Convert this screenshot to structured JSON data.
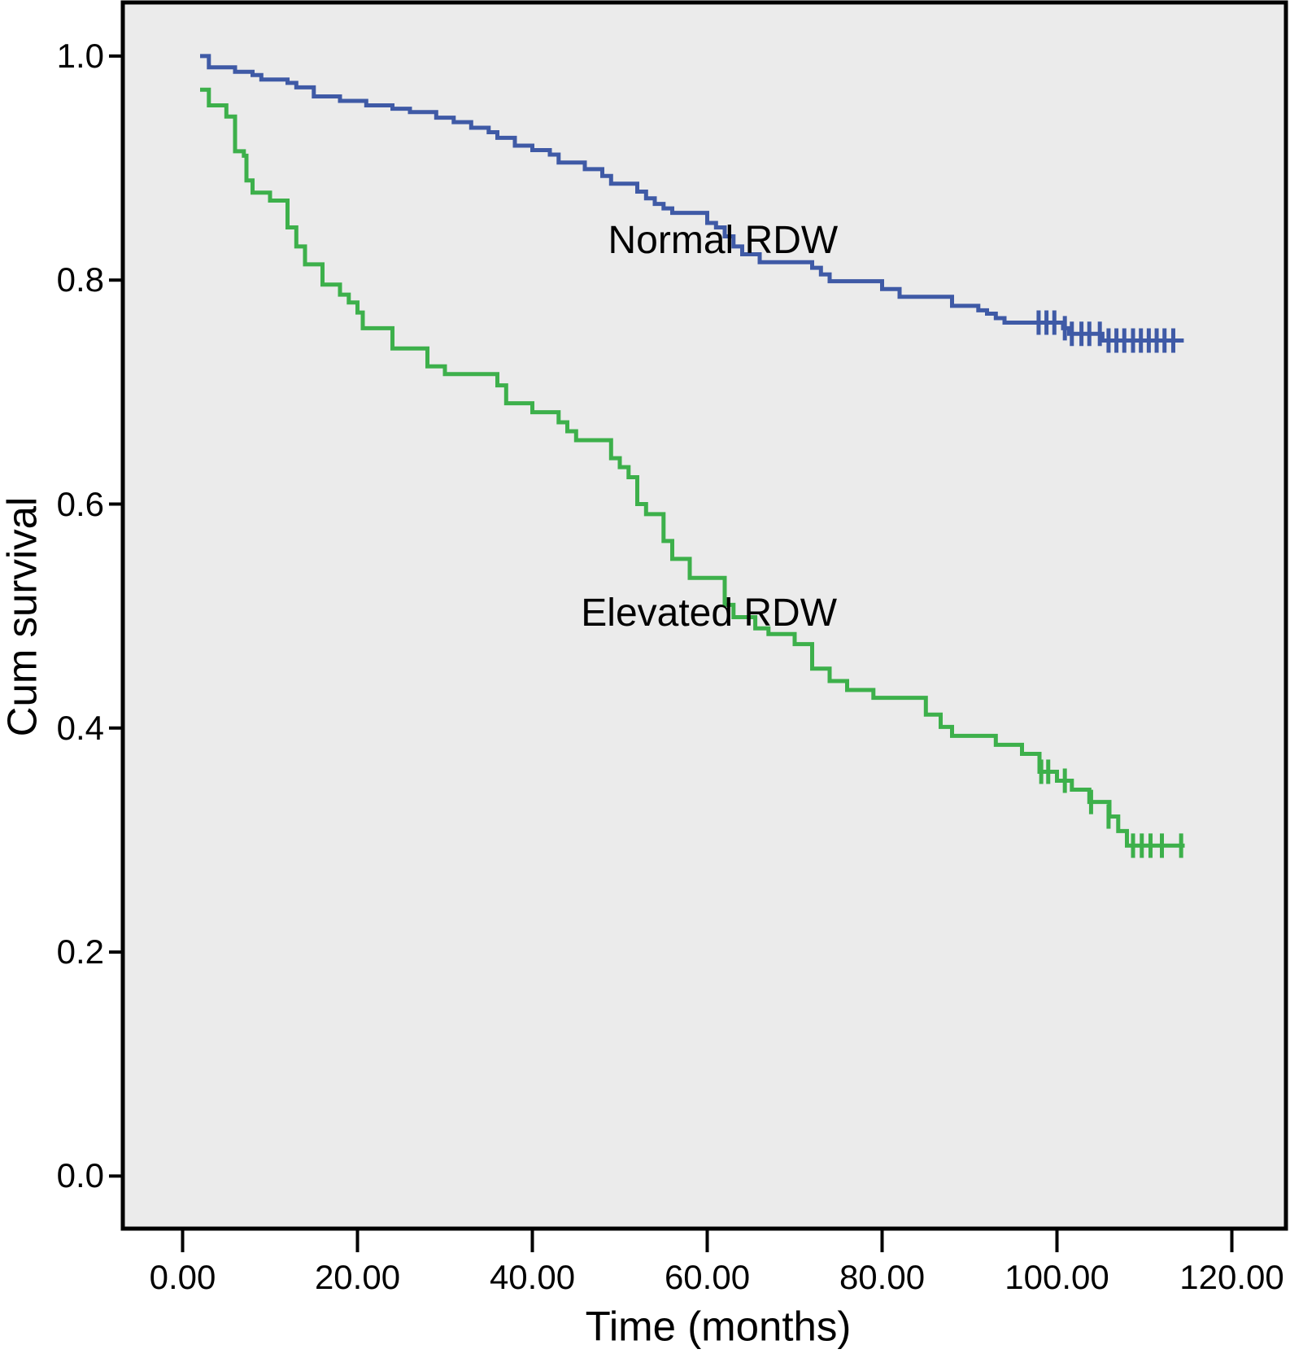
{
  "chart_data": {
    "type": "line",
    "subtype": "kaplan-meier-step",
    "title": "",
    "xlabel": "Time (months)",
    "ylabel": "Cum survival",
    "grid": false,
    "legend_position": "none",
    "plot_background": "#ebebeb",
    "frame_color": "#000000",
    "xlim": [
      -6.8,
      126.3
    ],
    "ylim": [
      -0.047,
      1.048
    ],
    "x_ticks": [
      {
        "value": 0,
        "label": "0.00"
      },
      {
        "value": 20,
        "label": "20.00"
      },
      {
        "value": 40,
        "label": "40.00"
      },
      {
        "value": 60,
        "label": "60.00"
      },
      {
        "value": 80,
        "label": "80.00"
      },
      {
        "value": 100,
        "label": "100.00"
      },
      {
        "value": 120,
        "label": "120.00"
      }
    ],
    "y_ticks": [
      {
        "value": 1.0,
        "label": "1.0"
      },
      {
        "value": 0.8,
        "label": "0.8"
      },
      {
        "value": 0.6,
        "label": "0.6"
      },
      {
        "value": 0.4,
        "label": "0.4"
      },
      {
        "value": 0.2,
        "label": "0.2"
      },
      {
        "value": 0.0,
        "label": "0.0"
      }
    ],
    "series": [
      {
        "name": "Normal RDW",
        "color": "#3f5aa6",
        "start": [
          2,
          1.0
        ],
        "drops": [
          [
            3,
            0.99
          ],
          [
            6,
            0.986
          ],
          [
            8,
            0.983
          ],
          [
            9,
            0.979
          ],
          [
            12,
            0.976
          ],
          [
            13,
            0.972
          ],
          [
            15,
            0.964
          ],
          [
            18,
            0.96
          ],
          [
            21,
            0.956
          ],
          [
            24,
            0.953
          ],
          [
            26,
            0.95
          ],
          [
            29,
            0.945
          ],
          [
            31,
            0.941
          ],
          [
            33,
            0.936
          ],
          [
            35,
            0.932
          ],
          [
            36,
            0.927
          ],
          [
            38,
            0.92
          ],
          [
            40,
            0.916
          ],
          [
            42,
            0.912
          ],
          [
            43,
            0.905
          ],
          [
            46,
            0.899
          ],
          [
            48,
            0.893
          ],
          [
            49,
            0.886
          ],
          [
            52,
            0.879
          ],
          [
            53,
            0.873
          ],
          [
            54,
            0.868
          ],
          [
            55,
            0.864
          ],
          [
            56,
            0.86
          ],
          [
            60,
            0.851
          ],
          [
            61,
            0.847
          ],
          [
            62,
            0.839
          ],
          [
            63,
            0.83
          ],
          [
            64,
            0.823
          ],
          [
            66,
            0.816
          ],
          [
            72,
            0.811
          ],
          [
            73,
            0.805
          ],
          [
            74,
            0.799
          ],
          [
            80,
            0.792
          ],
          [
            82,
            0.785
          ],
          [
            88,
            0.777
          ],
          [
            91,
            0.773
          ],
          [
            92,
            0.77
          ],
          [
            93,
            0.766
          ],
          [
            94,
            0.762
          ],
          [
            100.7,
            0.757
          ],
          [
            101.4,
            0.752
          ],
          [
            105.2,
            0.746
          ]
        ],
        "end_time": 114.5,
        "censored": [
          [
            97.9,
            0.762
          ],
          [
            98.8,
            0.762
          ],
          [
            99.7,
            0.762
          ],
          [
            100.9,
            0.757
          ],
          [
            101.7,
            0.752
          ],
          [
            102.8,
            0.752
          ],
          [
            103.7,
            0.752
          ],
          [
            104.9,
            0.752
          ],
          [
            105.9,
            0.746
          ],
          [
            106.8,
            0.746
          ],
          [
            107.7,
            0.746
          ],
          [
            108.7,
            0.746
          ],
          [
            109.6,
            0.746
          ],
          [
            110.5,
            0.746
          ],
          [
            111.4,
            0.746
          ],
          [
            112.3,
            0.746
          ],
          [
            113.3,
            0.746
          ]
        ]
      },
      {
        "name": "Elevated RDW",
        "color": "#3db04b",
        "start": [
          2,
          0.97
        ],
        "drops": [
          [
            3,
            0.956
          ],
          [
            5,
            0.946
          ],
          [
            6,
            0.915
          ],
          [
            7,
            0.911
          ],
          [
            7.3,
            0.889
          ],
          [
            8,
            0.878
          ],
          [
            10,
            0.871
          ],
          [
            12,
            0.847
          ],
          [
            13,
            0.83
          ],
          [
            14,
            0.814
          ],
          [
            16,
            0.796
          ],
          [
            18,
            0.787
          ],
          [
            19,
            0.78
          ],
          [
            20,
            0.771
          ],
          [
            20.6,
            0.757
          ],
          [
            24,
            0.739
          ],
          [
            28,
            0.723
          ],
          [
            30,
            0.716
          ],
          [
            36,
            0.706
          ],
          [
            37,
            0.69
          ],
          [
            40,
            0.682
          ],
          [
            43,
            0.673
          ],
          [
            44,
            0.665
          ],
          [
            45,
            0.657
          ],
          [
            49,
            0.641
          ],
          [
            50,
            0.633
          ],
          [
            51,
            0.624
          ],
          [
            52,
            0.6
          ],
          [
            53,
            0.591
          ],
          [
            55,
            0.567
          ],
          [
            56,
            0.551
          ],
          [
            58,
            0.534
          ],
          [
            62,
            0.51
          ],
          [
            63,
            0.499
          ],
          [
            65.5,
            0.489
          ],
          [
            67,
            0.484
          ],
          [
            70,
            0.475
          ],
          [
            72,
            0.453
          ],
          [
            74,
            0.442
          ],
          [
            76,
            0.434
          ],
          [
            79,
            0.427
          ],
          [
            85,
            0.412
          ],
          [
            86.7,
            0.401
          ],
          [
            88,
            0.393
          ],
          [
            93,
            0.385
          ],
          [
            96,
            0.377
          ],
          [
            98,
            0.361
          ],
          [
            100,
            0.353
          ],
          [
            101.7,
            0.345
          ],
          [
            103.7,
            0.334
          ],
          [
            106,
            0.321
          ],
          [
            107,
            0.308
          ],
          [
            108,
            0.295
          ]
        ],
        "end_time": 114.6,
        "censored": [
          [
            98.2,
            0.361
          ],
          [
            99.0,
            0.361
          ],
          [
            100.9,
            0.353
          ],
          [
            103.9,
            0.334
          ],
          [
            105.9,
            0.321
          ],
          [
            108.7,
            0.295
          ],
          [
            109.7,
            0.295
          ],
          [
            110.7,
            0.295
          ],
          [
            112.0,
            0.295
          ],
          [
            114.2,
            0.295
          ]
        ]
      }
    ],
    "annotations": [
      {
        "text": "Normal RDW",
        "x": 61.8,
        "y": 0.835
      },
      {
        "text": "Elevated RDW",
        "x": 60.2,
        "y": 0.502
      }
    ]
  }
}
